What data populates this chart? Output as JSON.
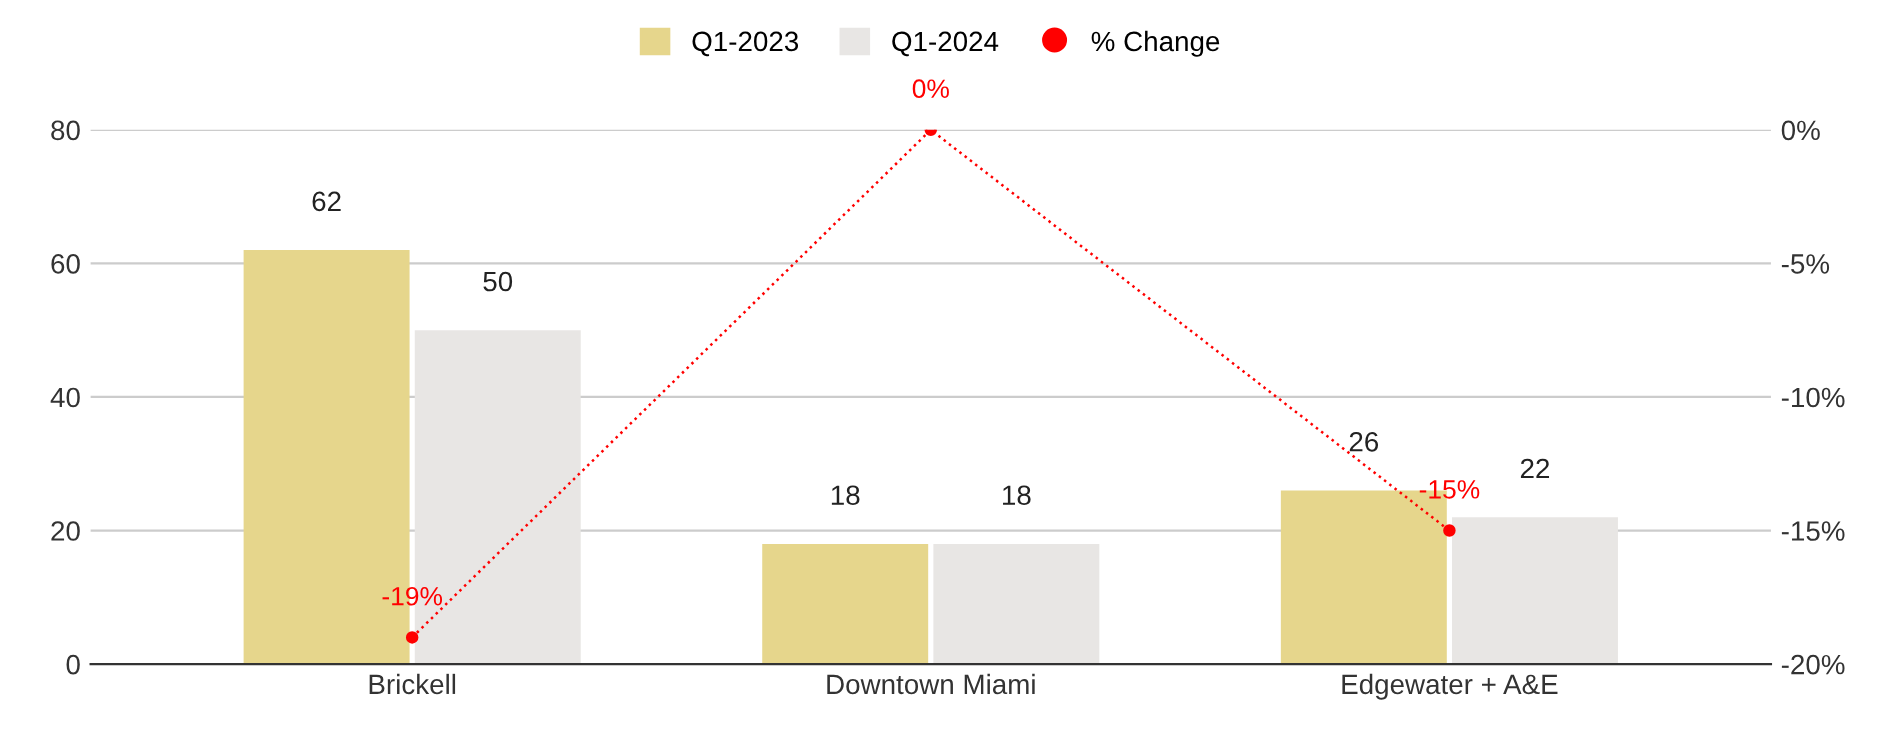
{
  "chart_data": {
    "type": "bar",
    "categories": [
      "Brickell",
      "Downtown Miami",
      "Edgewater + A&E"
    ],
    "series": [
      {
        "name": "Q1-2023",
        "color": "#e6d68c",
        "values": [
          62,
          18,
          26
        ],
        "value_labels": [
          "62",
          "18",
          "26"
        ]
      },
      {
        "name": "Q1-2024",
        "color": "#e8e6e4",
        "values": [
          50,
          18,
          22
        ],
        "value_labels": [
          "50",
          "18",
          "22"
        ]
      },
      {
        "name": "% Change",
        "type": "line",
        "axis": "y2",
        "color": "#ff0000",
        "values": [
          -19,
          0,
          -15
        ],
        "value_labels": [
          "-19%",
          "0%",
          "-15%"
        ],
        "marker": "circle",
        "line_style": "dotted"
      }
    ],
    "ylim": [
      0,
      80
    ],
    "yticks": [
      0,
      20,
      40,
      60,
      80
    ],
    "y2lim": [
      -20,
      0
    ],
    "y2ticks": [
      {
        "value": -20,
        "label": "-20%"
      },
      {
        "value": -15,
        "label": "-15%"
      },
      {
        "value": -10,
        "label": "-10%"
      },
      {
        "value": -5,
        "label": "-5%"
      },
      {
        "value": 0,
        "label": "0%"
      }
    ],
    "grid": "y",
    "legend": "top"
  }
}
